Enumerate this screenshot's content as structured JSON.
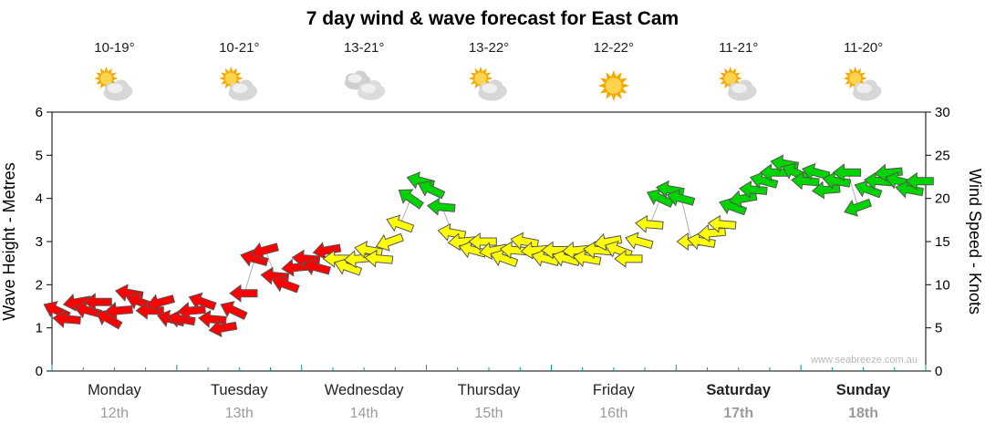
{
  "title": "7 day wind & wave forecast for East Cam",
  "watermark": "www.seabreeze.com.au",
  "axes": {
    "left_label": "Wave Height - Metres",
    "right_label": "Wind Speed - Knots",
    "left_ticks": [
      0,
      1,
      2,
      3,
      4,
      5,
      6
    ],
    "right_ticks": [
      0,
      5,
      10,
      15,
      20,
      25,
      30
    ],
    "left_max": 6,
    "right_max": 30
  },
  "days": [
    {
      "name": "Monday",
      "date": "12th",
      "temp": "10-19°",
      "icon": "partly-cloudy",
      "bold": false
    },
    {
      "name": "Tuesday",
      "date": "13th",
      "temp": "10-21°",
      "icon": "partly-cloudy",
      "bold": false
    },
    {
      "name": "Wednesday",
      "date": "14th",
      "temp": "13-21°",
      "icon": "cloudy",
      "bold": false
    },
    {
      "name": "Thursday",
      "date": "15th",
      "temp": "13-22°",
      "icon": "partly-cloudy",
      "bold": false
    },
    {
      "name": "Friday",
      "date": "16th",
      "temp": "12-22°",
      "icon": "sunny",
      "bold": false
    },
    {
      "name": "Saturday",
      "date": "17th",
      "temp": "11-21°",
      "icon": "partly-cloudy",
      "bold": true
    },
    {
      "name": "Sunday",
      "date": "18th",
      "temp": "11-20°",
      "icon": "partly-cloudy",
      "bold": true
    }
  ],
  "colors": {
    "r": "#ff0000",
    "y": "#ffff00",
    "g": "#00d400",
    "outline": "#555555",
    "connector": "#b0b0b0",
    "x_tick": "#009a9a",
    "axis": "#000000",
    "day_name": "#222222",
    "day_date": "#9b9b9b",
    "temp_text": "#1c1c1c",
    "watermark_text": "#b8b8b8"
  },
  "chart_data": {
    "type": "wind-arrows",
    "title": "7 day wind & wave forecast for East Cam",
    "x_unit": "hours from Monday 00:00, one arrow every 2 hours",
    "y_unit": "knots (right axis), metres shown on left axis at half scale",
    "hours_step": 2,
    "ylim_knots": [
      0,
      30
    ],
    "ylim_metres": [
      0,
      6
    ],
    "legend": "arrow colour = wind strength band: r=light, y=moderate, g=fresh",
    "series": [
      {
        "day": "Monday",
        "knots": [
          7,
          6,
          8,
          7,
          8,
          6,
          7,
          9,
          8,
          7,
          8,
          6
        ],
        "dir": [
          205,
          185,
          170,
          195,
          180,
          210,
          175,
          190,
          200,
          180,
          165,
          195
        ],
        "color": "rrrrrrrrrrrr"
      },
      {
        "day": "Tuesday",
        "knots": [
          6,
          7,
          8,
          6,
          5,
          7,
          9,
          13,
          14,
          11,
          10,
          12
        ],
        "dir": [
          190,
          175,
          200,
          185,
          170,
          205,
          180,
          195,
          165,
          185,
          200,
          175
        ],
        "color": "rrrrrrrrrrrr"
      },
      {
        "day": "Wednesday",
        "knots": [
          13,
          12,
          14,
          13,
          12,
          13,
          14,
          13,
          15,
          17,
          20,
          22
        ],
        "dir": [
          185,
          195,
          170,
          180,
          200,
          175,
          190,
          185,
          160,
          200,
          215,
          195
        ],
        "color": "rrryyyyyyygg"
      },
      {
        "day": "Thursday",
        "knots": [
          21,
          19,
          16,
          15,
          14,
          15,
          14,
          13,
          14,
          15,
          14,
          13
        ],
        "dir": [
          205,
          185,
          190,
          175,
          195,
          180,
          170,
          200,
          185,
          190,
          175,
          195
        ],
        "color": "ggyyyyyyyyyy"
      },
      {
        "day": "Friday",
        "knots": [
          14,
          13,
          14,
          13,
          14,
          15,
          14,
          13,
          15,
          17,
          20,
          21
        ],
        "dir": [
          180,
          195,
          175,
          190,
          185,
          170,
          200,
          180,
          195,
          185,
          205,
          190
        ],
        "color": "yyyyyyyyyygg"
      },
      {
        "day": "Saturday",
        "knots": [
          20,
          15,
          15,
          16,
          17,
          19,
          20,
          21,
          22,
          23,
          24,
          23
        ],
        "dir": [
          195,
          180,
          190,
          175,
          185,
          200,
          170,
          185,
          195,
          180,
          190,
          205
        ],
        "color": "gyyyyggggggg"
      },
      {
        "day": "Sunday",
        "knots": [
          22,
          23,
          21,
          22,
          23,
          19,
          21,
          22,
          23,
          22,
          21,
          22
        ],
        "dir": [
          185,
          195,
          175,
          190,
          180,
          160,
          200,
          185,
          175,
          195,
          190,
          180
        ],
        "color": "gggggggggggg"
      }
    ]
  }
}
